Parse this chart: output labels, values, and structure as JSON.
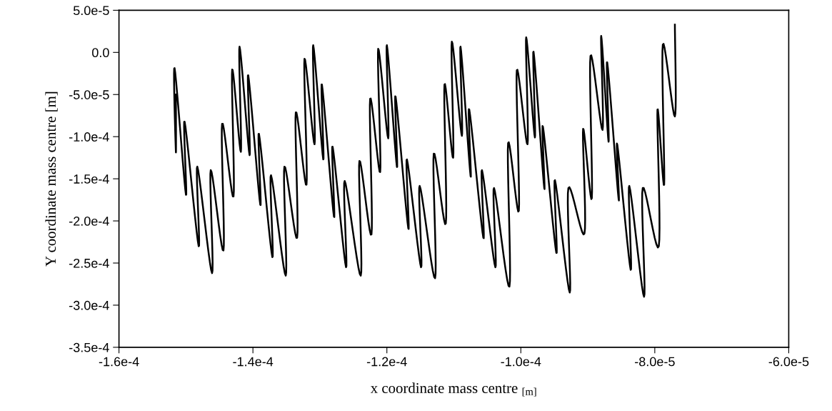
{
  "chart_data": {
    "type": "line",
    "xlabel": "x coordinate mass centre $_{[m]}$",
    "ylabel": "Y coordinate mass centre [m]",
    "xlim": [
      -0.00016,
      -6e-05
    ],
    "xticks": [
      {
        "value": -0.00016,
        "label": "-1.6e-4"
      },
      {
        "value": -0.00014,
        "label": "-1.4e-4"
      },
      {
        "value": -0.00012,
        "label": "-1.2e-4"
      },
      {
        "value": -0.0001,
        "label": "-1.0e-4"
      },
      {
        "value": -8e-05,
        "label": "-8.0e-5"
      },
      {
        "value": -6e-05,
        "label": "-6.0e-5"
      }
    ],
    "ylim": [
      -0.00035,
      5e-05
    ],
    "yticks": [
      {
        "value": 5e-05,
        "label": "5.0e-5"
      },
      {
        "value": 0,
        "label": "0.0"
      },
      {
        "value": -5e-05,
        "label": "-5.0e-5"
      },
      {
        "value": -0.0001,
        "label": "-1.0e-4"
      },
      {
        "value": -0.00015,
        "label": "-1.5e-4"
      },
      {
        "value": -0.0002,
        "label": "-2.0e-4"
      },
      {
        "value": -0.00025,
        "label": "-2.5e-4"
      },
      {
        "value": -0.0003,
        "label": "-3.0e-4"
      },
      {
        "value": -0.00035,
        "label": "-3.5e-4"
      }
    ],
    "marker": "none",
    "line_style": "solid",
    "series": [
      {
        "color": "#000000",
        "x": [
          -0.0001515,
          -0.0001515,
          -0.0001517,
          -0.00015,
          -0.0001502,
          -0.0001481,
          -0.0001483,
          -0.0001461,
          -0.0001463,
          -0.0001444,
          -0.0001446,
          -0.0001429,
          -0.0001431,
          -0.0001418,
          -0.000142,
          -0.0001405,
          -0.0001407,
          -0.0001389,
          -0.0001391,
          -0.0001371,
          -0.0001373,
          -0.0001351,
          -0.0001353,
          -0.0001334,
          -0.0001336,
          -0.000132,
          -0.0001323,
          -0.0001308,
          -0.000131,
          -0.0001295,
          -0.0001297,
          -0.0001279,
          -0.0001281,
          -0.0001261,
          -0.0001263,
          -0.0001239,
          -0.0001241,
          -0.0001223,
          -0.0001225,
          -0.000121,
          -0.0001213,
          -0.0001198,
          -0.00012,
          -0.0001185,
          -0.0001187,
          -0.0001168,
          -0.000117,
          -0.0001149,
          -0.0001151,
          -0.0001128,
          -0.000113,
          -0.0001112,
          -0.0001114,
          -0.0001101,
          -0.0001103,
          -0.0001088,
          -0.000109,
          -0.0001075,
          -0.0001077,
          -0.0001056,
          -0.0001058,
          -0.0001038,
          -0.000104,
          -0.0001017,
          -0.0001019,
          -0.0001003,
          -0.0001006,
          -9.9e-05,
          -9.92e-05,
          -9.79e-05,
          -9.81e-05,
          -9.65e-05,
          -9.67e-05,
          -9.47e-05,
          -9.49e-05,
          -9.27e-05,
          -9.29e-05,
          -9.05e-05,
          -9.07e-05,
          -8.94e-05,
          -8.96e-05,
          -8.78e-05,
          -8.8e-05,
          -8.69e-05,
          -8.71e-05,
          -8.54e-05,
          -8.56e-05,
          -8.36e-05,
          -8.38e-05,
          -8.16e-05,
          -8.18e-05,
          -7.94e-05,
          -7.96e-05,
          -7.86e-05,
          -7.88e-05,
          -7.7e-05,
          -7.7e-05
        ],
        "values": [
          -5e-05,
          -0.0001187,
          -1.86e-05,
          -0.000169,
          -8.22e-05,
          -0.00023,
          -0.0001356,
          -0.000262,
          -0.0001398,
          -0.000235,
          -8.47e-05,
          -0.000171,
          -2.03e-05,
          -0.000118,
          6.8e-06,
          -0.000122,
          -2.71e-05,
          -0.000181,
          -9.66e-05,
          -0.000243,
          -0.0001458,
          -0.000265,
          -0.0001356,
          -0.00022,
          -7.12e-05,
          -0.000157,
          -7.6e-06,
          -0.000109,
          8.5e-06,
          -0.000127,
          -3.81e-05,
          -0.000195,
          -0.0001119,
          -0.000255,
          -0.0001526,
          -0.000265,
          -0.0001288,
          -0.000216,
          -5.51e-05,
          -0.000142,
          4.2e-06,
          -0.000102,
          8.5e-06,
          -0.000136,
          -5.25e-05,
          -0.000209,
          -0.0001271,
          -0.000255,
          -0.0001585,
          -0.000268,
          -0.0001203,
          -0.000203,
          -3.81e-05,
          -0.000125,
          1.27e-05,
          -9.9e-05,
          6.8e-06,
          -0.000147,
          -6.78e-05,
          -0.00022,
          -0.0001398,
          -0.000255,
          -0.000161,
          -0.000278,
          -0.0001076,
          -0.000188,
          -2.12e-05,
          -0.000109,
          1.78e-05,
          -0.000101,
          8e-07,
          -0.000161,
          -8.81e-05,
          -0.000238,
          -0.0001517,
          -0.000285,
          -0.000161,
          -0.000215,
          -9.07e-05,
          -0.000173,
          -4.2e-06,
          -9.2e-05,
          1.95e-05,
          -0.000106,
          -1.19e-05,
          -0.000174,
          -0.0001093,
          -0.000258,
          -0.0001585,
          -0.00029,
          -0.000161,
          -0.00023,
          -6.78e-05,
          -0.000157,
          9.3e-06,
          -7.6e-05,
          3.3e-05
        ]
      }
    ]
  }
}
